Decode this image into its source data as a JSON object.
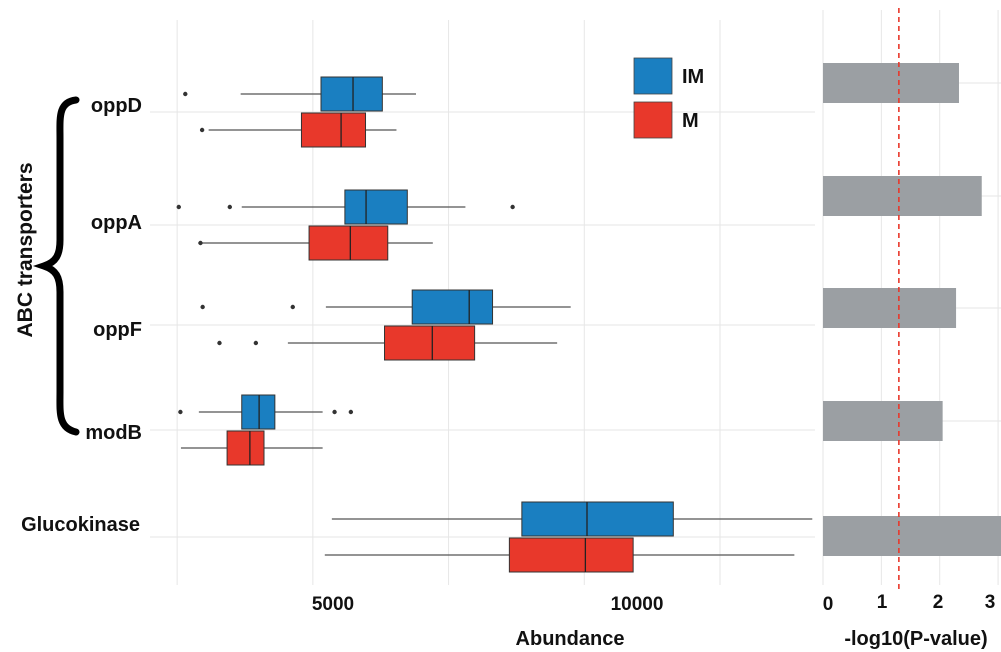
{
  "colors": {
    "IM": "#1a7fc1",
    "M": "#e8382b",
    "pval_bar": "#9b9fa3",
    "threshold": "#e8382b",
    "grid": "#e6e6e6",
    "whisker": "#555555"
  },
  "group_label": "ABC transporters",
  "chart_data": [
    {
      "type": "box",
      "xlabel": "Abundance",
      "xlim": [
        2000,
        14250
      ],
      "xticks": [
        5000,
        10000
      ],
      "xtick_labels": [
        "5000",
        "10000"
      ],
      "grid": true,
      "legend": {
        "position": "top-right",
        "entries": [
          "IM",
          "M"
        ]
      },
      "categories": [
        "oppD",
        "oppA",
        "oppF",
        "modB",
        "Glucokinase"
      ],
      "series": [
        {
          "name": "IM",
          "boxes": [
            {
              "category": "oppD",
              "whisker_low": 3670,
              "q1": 5150,
              "median": 5740,
              "q3": 6280,
              "whisker_high": 6900,
              "outliers": [
                2650
              ]
            },
            {
              "category": "oppA",
              "whisker_low": 3690,
              "q1": 5590,
              "median": 5980,
              "q3": 6740,
              "whisker_high": 7810,
              "outliers": [
                2530,
                3470,
                8680
              ]
            },
            {
              "category": "oppF",
              "whisker_low": 5240,
              "q1": 6830,
              "median": 7880,
              "q3": 8310,
              "whisker_high": 9750,
              "outliers": [
                2970,
                4630
              ]
            },
            {
              "category": "modB",
              "whisker_low": 2900,
              "q1": 3690,
              "median": 4010,
              "q3": 4300,
              "whisker_high": 5180,
              "outliers": [
                2560,
                5400,
                5700
              ]
            },
            {
              "category": "Glucokinase",
              "whisker_low": 5350,
              "q1": 8850,
              "median": 10050,
              "q3": 11640,
              "whisker_high": 14200,
              "outliers": []
            }
          ]
        },
        {
          "name": "M",
          "boxes": [
            {
              "category": "oppD",
              "whisker_low": 3080,
              "q1": 4790,
              "median": 5520,
              "q3": 5970,
              "whisker_high": 6540,
              "outliers": [
                2960
              ]
            },
            {
              "category": "oppA",
              "whisker_low": 2890,
              "q1": 4930,
              "median": 5690,
              "q3": 6380,
              "whisker_high": 7210,
              "outliers": [
                2930
              ]
            },
            {
              "category": "oppF",
              "whisker_low": 4540,
              "q1": 6320,
              "median": 7200,
              "q3": 7980,
              "whisker_high": 9500,
              "outliers": [
                3280,
                3950
              ]
            },
            {
              "category": "modB",
              "whisker_low": 2570,
              "q1": 3420,
              "median": 3840,
              "q3": 4100,
              "whisker_high": 5180,
              "outliers": []
            },
            {
              "category": "Glucokinase",
              "whisker_low": 5220,
              "q1": 8620,
              "median": 10020,
              "q3": 10900,
              "whisker_high": 13870,
              "outliers": []
            }
          ]
        }
      ]
    },
    {
      "type": "bar",
      "orientation": "horizontal",
      "xlabel": "-log10(P-value)",
      "xlim": [
        0,
        3.05
      ],
      "xticks": [
        0,
        1,
        2,
        3
      ],
      "xtick_labels": [
        "0",
        "1",
        "2",
        "3"
      ],
      "threshold": 1.3,
      "categories": [
        "oppD",
        "oppA",
        "oppF",
        "modB",
        "Glucokinase"
      ],
      "values": [
        2.33,
        2.72,
        2.28,
        2.05,
        3.05
      ]
    }
  ]
}
